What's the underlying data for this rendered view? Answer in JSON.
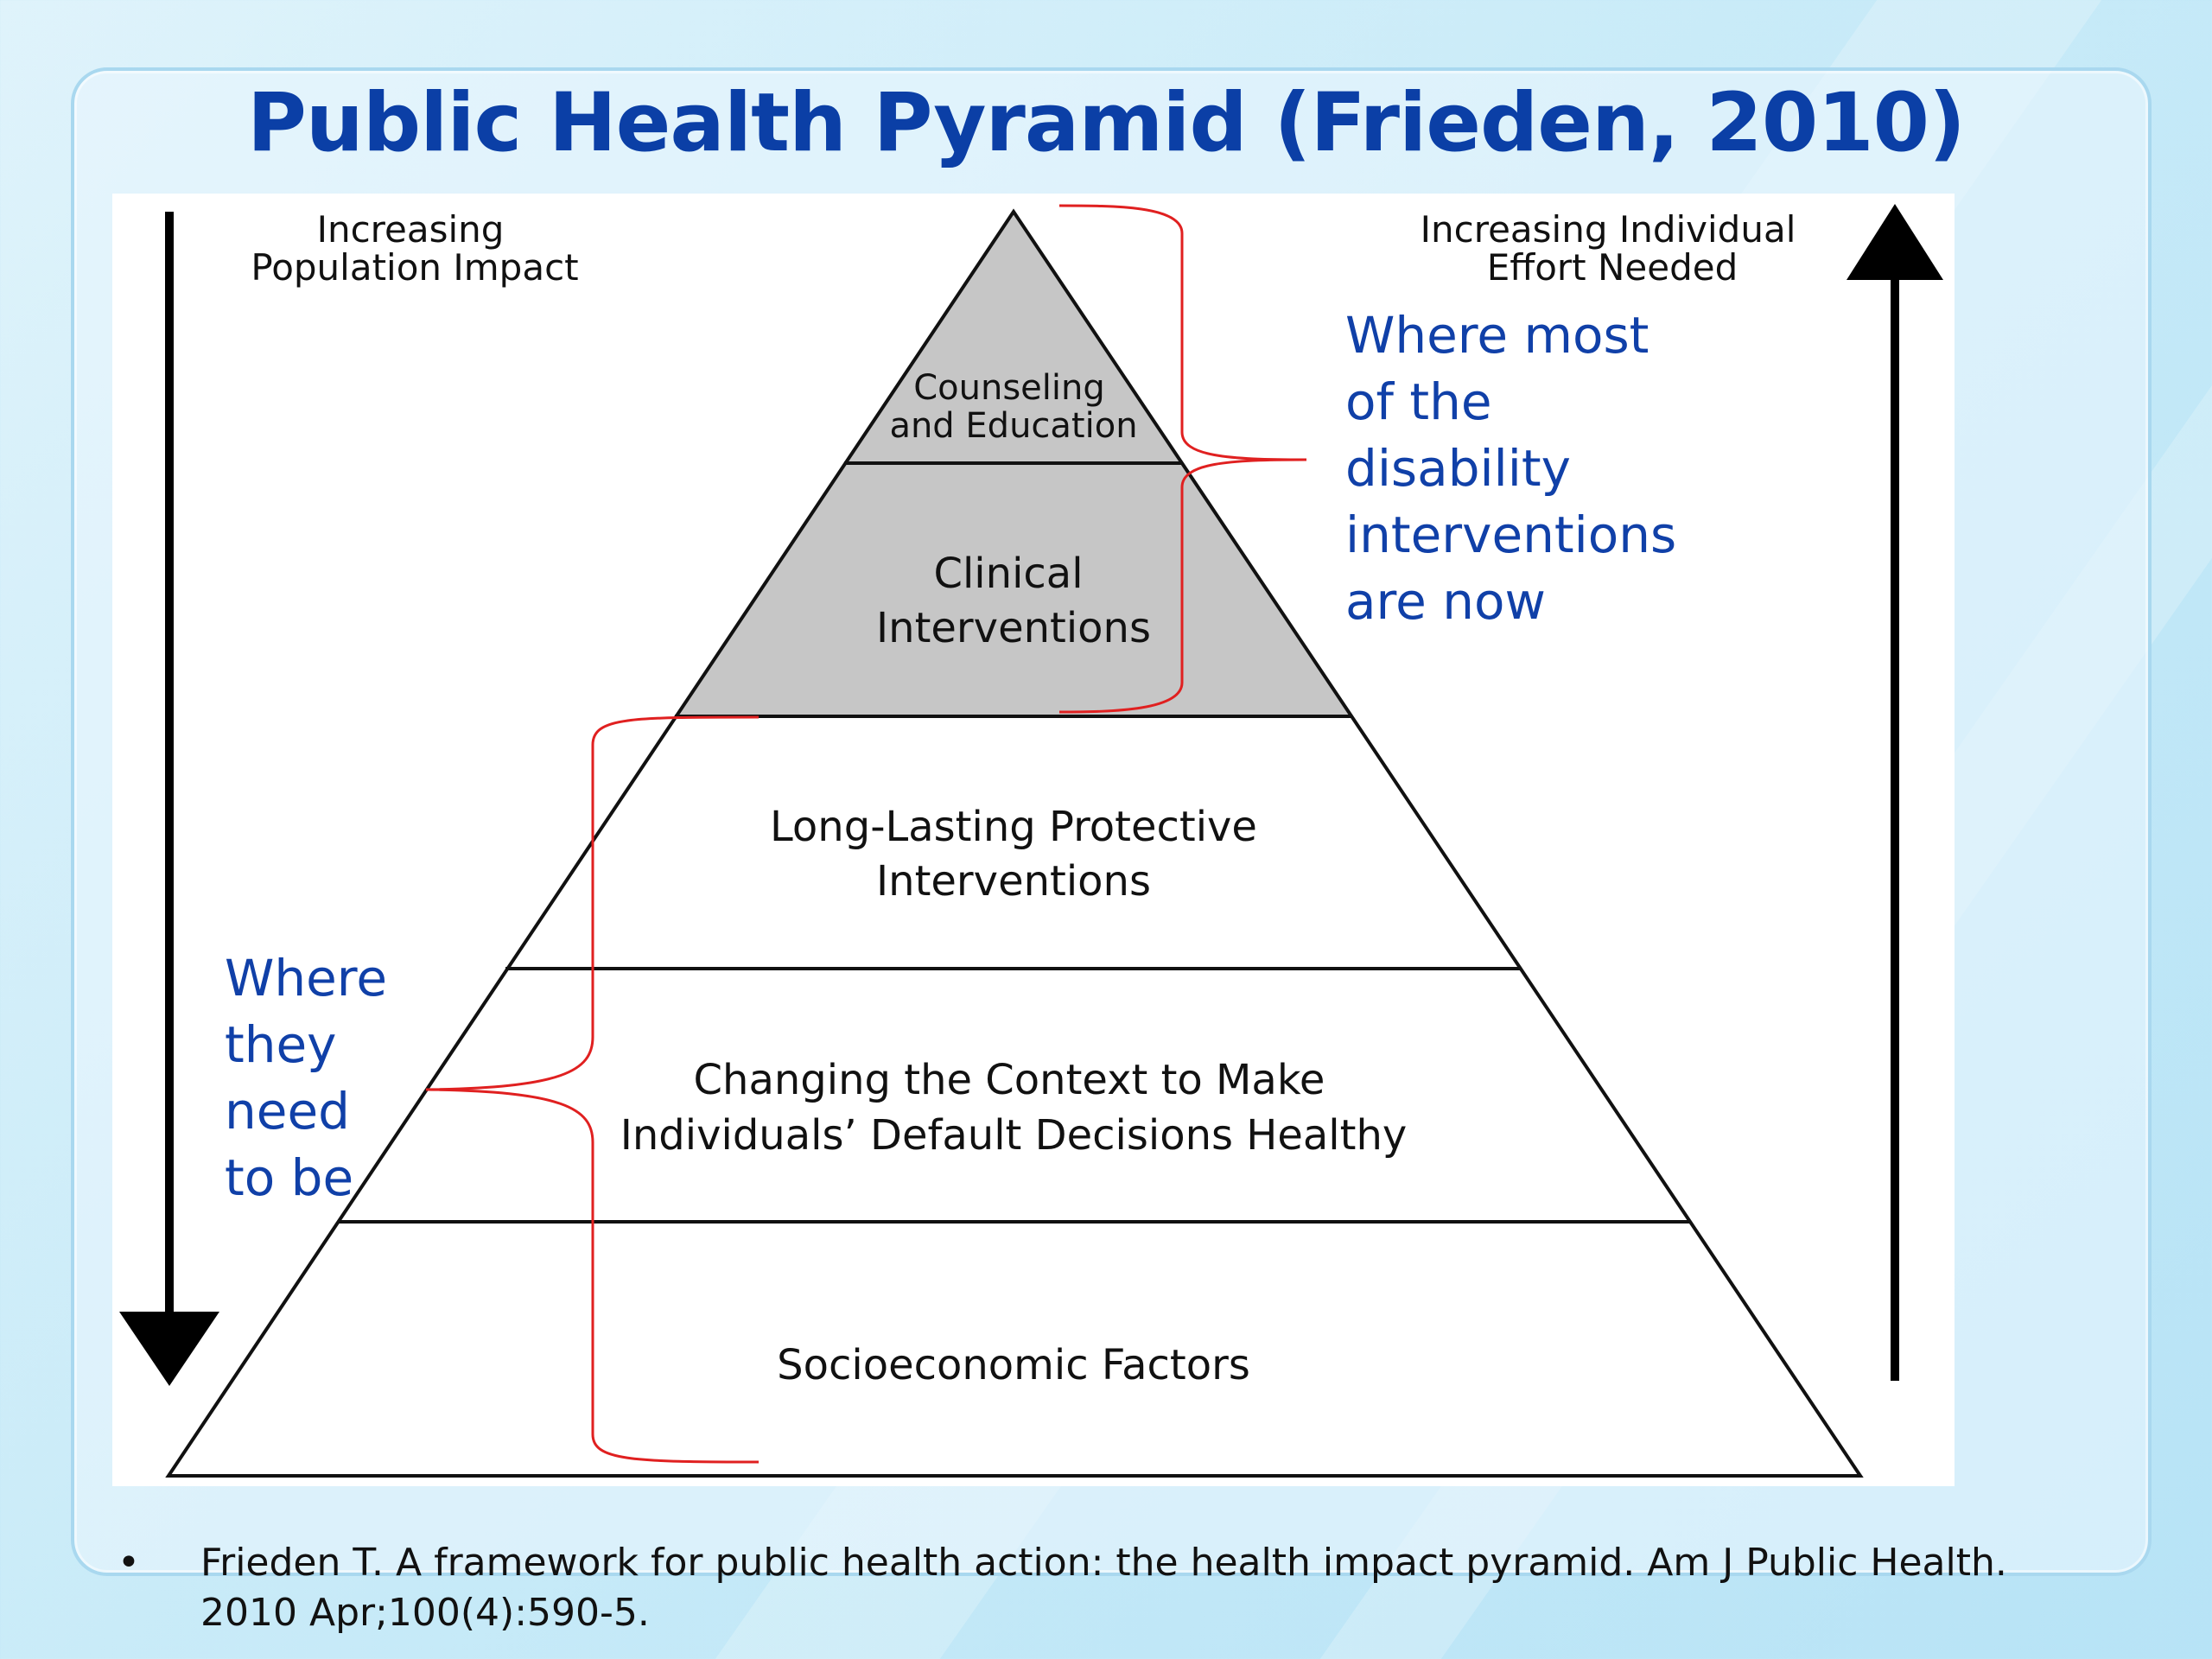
{
  "title": "Public Health Pyramid (Frieden, 2010)",
  "left_axis": {
    "line1": "Increasing",
    "line2": "Population Impact",
    "direction": "down"
  },
  "right_axis": {
    "line1": "Increasing Individual",
    "line2": "Effort Needed",
    "direction": "up"
  },
  "pyramid_tiers": [
    {
      "lines": [
        "Counseling",
        "and Education"
      ],
      "fill": "#c6c6c6"
    },
    {
      "lines": [
        "Clinical",
        "Interventions"
      ],
      "fill": "#c6c6c6"
    },
    {
      "lines": [
        "Long-Lasting Protective",
        "Interventions"
      ],
      "fill": "#ffffff"
    },
    {
      "lines": [
        "Changing the Context to Make",
        "Individuals’ Default Decisions Healthy"
      ],
      "fill": "#ffffff"
    },
    {
      "lines": [
        "Socioeconomic Factors"
      ],
      "fill": "#ffffff"
    }
  ],
  "annotation_right": {
    "lines": [
      "Where most",
      "of the",
      "disability",
      "interventions",
      "are now"
    ],
    "color": "#1040a8"
  },
  "annotation_left": {
    "lines": [
      "Where",
      "they",
      "need",
      "to be"
    ],
    "color": "#1040a8"
  },
  "bracket_color": "#e02020",
  "reference": {
    "bullet": "•",
    "text": "Frieden T. A framework for public health action: the health impact pyramid.  Am J Public Health. 2010 Apr;100(4):590-5."
  }
}
